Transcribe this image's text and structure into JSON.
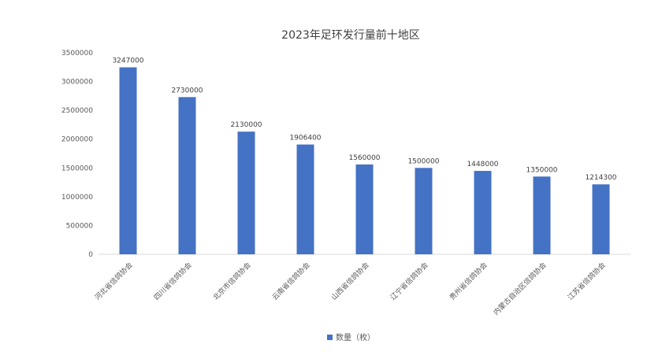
{
  "chart_data": {
    "type": "bar",
    "title": "2023年足环发行量前十地区",
    "categories": [
      "河北省信鸽协会",
      "四川省信鸽协会",
      "北京市信鸽协会",
      "云南省信鸽协会",
      "山西省信鸽协会",
      "辽宁省信鸽协会",
      "贵州省信鸽协会",
      "内蒙古自治区信鸽协会",
      "江苏省信鸽协会"
    ],
    "series": [
      {
        "name": "数量（枚）",
        "values": [
          3247000,
          2730000,
          2130000,
          1906400,
          1560000,
          1500000,
          1448000,
          1350000,
          1214300
        ],
        "color": "#4472C4"
      }
    ],
    "data_labels": [
      "3247000",
      "2730000",
      "2130000",
      "1906400",
      "1560000",
      "1500000",
      "1448000",
      "1350000",
      "1214300"
    ],
    "yticks": [
      "0",
      "500000",
      "1000000",
      "1500000",
      "2000000",
      "2500000",
      "3000000",
      "3500000"
    ],
    "ylim": [
      0,
      3500000
    ],
    "grid": false,
    "legend_position": "bottom"
  }
}
